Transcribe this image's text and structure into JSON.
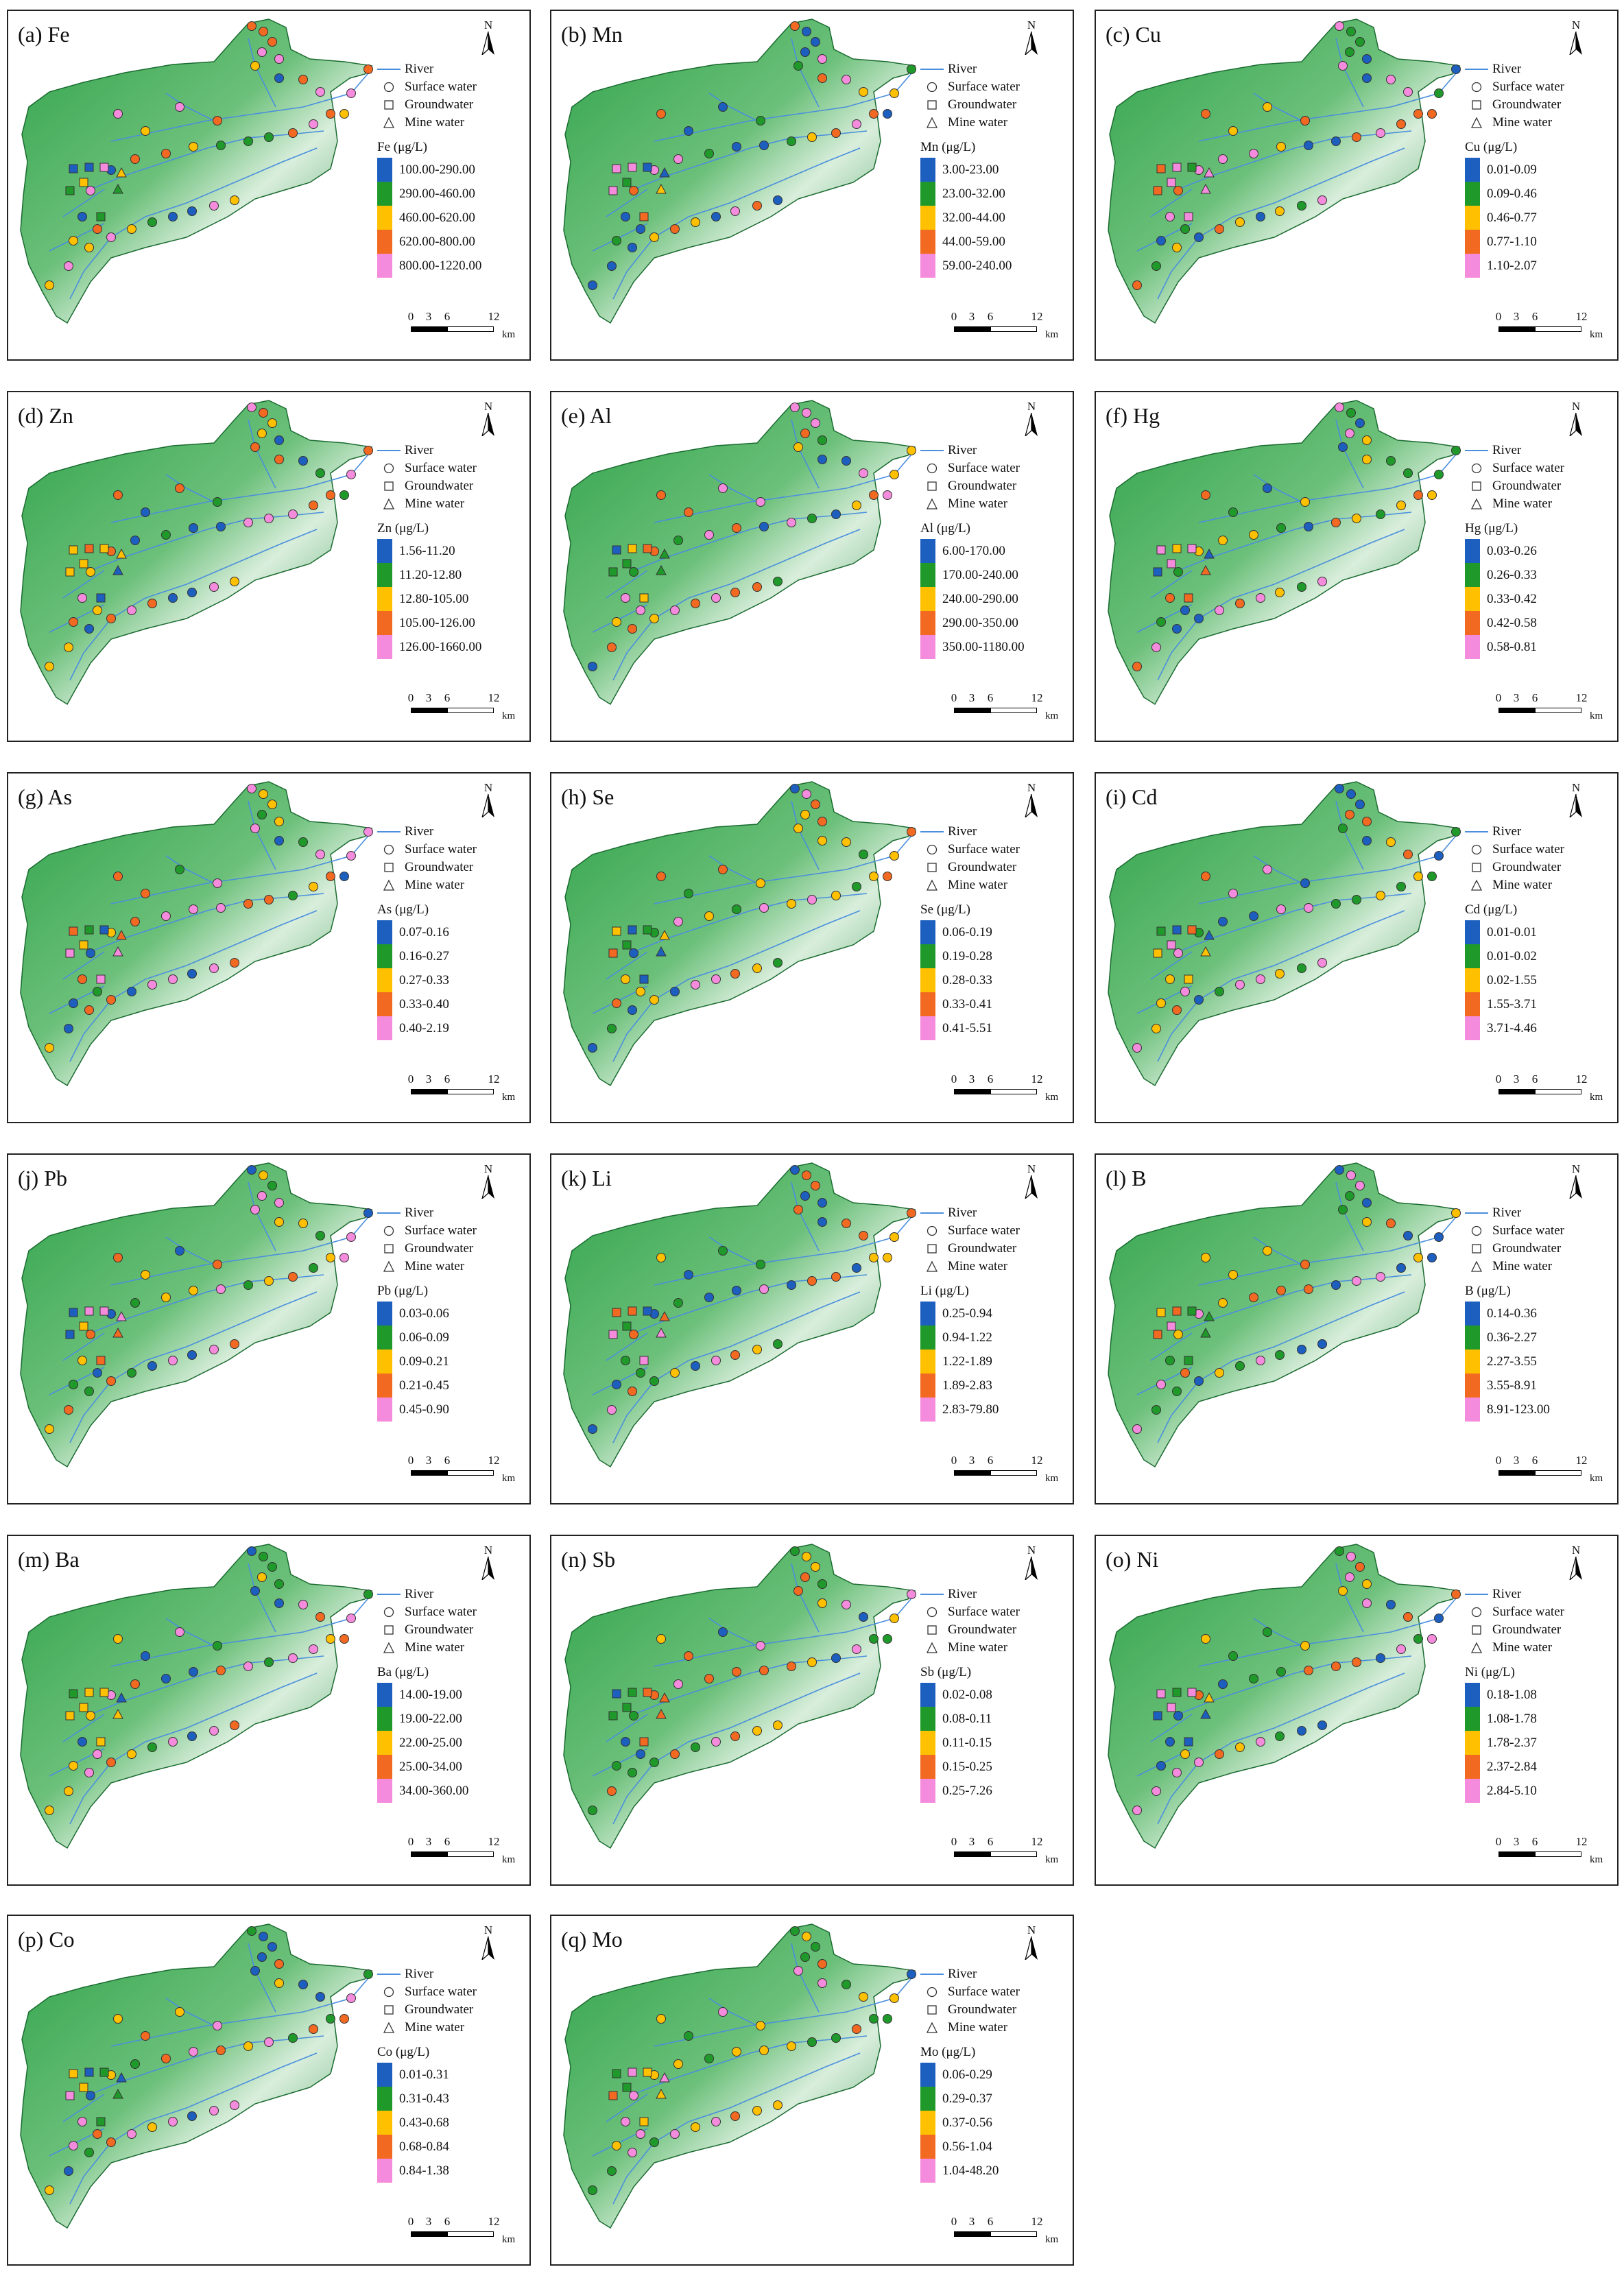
{
  "legend_items": {
    "river": "River",
    "surface": "Surface water",
    "ground": "Groundwater",
    "mine": "Mine water"
  },
  "scale": {
    "ticks": [
      "0",
      "3",
      "6",
      "12"
    ],
    "unit": "km"
  },
  "class_colors": [
    "#1d5fbf",
    "#1f9a2a",
    "#ffc000",
    "#f26a21",
    "#f58bdc"
  ],
  "colors": {
    "river": "#4a8fdd",
    "map_green": "#2e9e48",
    "map_light": "#dff0e3"
  },
  "icons": {
    "north_arrow": "north-arrow-icon"
  },
  "panels": [
    {
      "title": "(a) Fe",
      "unit_label": "Fe (μg/L)",
      "classes": [
        "100.00-290.00",
        "290.00-460.00",
        "460.00-620.00",
        "620.00-800.00",
        "800.00-1220.00"
      ]
    },
    {
      "title": "(b) Mn",
      "unit_label": "Mn (μg/L)",
      "classes": [
        "3.00-23.00",
        "23.00-32.00",
        "32.00-44.00",
        "44.00-59.00",
        "59.00-240.00"
      ]
    },
    {
      "title": "(c) Cu",
      "unit_label": "Cu (μg/L)",
      "classes": [
        "0.01-0.09",
        "0.09-0.46",
        "0.46-0.77",
        "0.77-1.10",
        "1.10-2.07"
      ]
    },
    {
      "title": "(d) Zn",
      "unit_label": "Zn (μg/L)",
      "classes": [
        "1.56-11.20",
        "11.20-12.80",
        "12.80-105.00",
        "105.00-126.00",
        "126.00-1660.00"
      ]
    },
    {
      "title": "(e) Al",
      "unit_label": "Al (μg/L)",
      "classes": [
        "6.00-170.00",
        "170.00-240.00",
        "240.00-290.00",
        "290.00-350.00",
        "350.00-1180.00"
      ]
    },
    {
      "title": "(f) Hg",
      "unit_label": "Hg (μg/L)",
      "classes": [
        "0.03-0.26",
        "0.26-0.33",
        "0.33-0.42",
        "0.42-0.58",
        "0.58-0.81"
      ]
    },
    {
      "title": "(g) As",
      "unit_label": "As (μg/L)",
      "classes": [
        "0.07-0.16",
        "0.16-0.27",
        "0.27-0.33",
        "0.33-0.40",
        "0.40-2.19"
      ]
    },
    {
      "title": "(h) Se",
      "unit_label": "Se (μg/L)",
      "classes": [
        "0.06-0.19",
        "0.19-0.28",
        "0.28-0.33",
        "0.33-0.41",
        "0.41-5.51"
      ]
    },
    {
      "title": "(i) Cd",
      "unit_label": "Cd (μg/L)",
      "classes": [
        "0.01-0.01",
        "0.01-0.02",
        "0.02-1.55",
        "1.55-3.71",
        "3.71-4.46"
      ]
    },
    {
      "title": "(j) Pb",
      "unit_label": "Pb (μg/L)",
      "classes": [
        "0.03-0.06",
        "0.06-0.09",
        "0.09-0.21",
        "0.21-0.45",
        "0.45-0.90"
      ]
    },
    {
      "title": "(k) Li",
      "unit_label": "Li (μg/L)",
      "classes": [
        "0.25-0.94",
        "0.94-1.22",
        "1.22-1.89",
        "1.89-2.83",
        "2.83-79.80"
      ]
    },
    {
      "title": "(l) B",
      "unit_label": "B (μg/L)",
      "classes": [
        "0.14-0.36",
        "0.36-2.27",
        "2.27-3.55",
        "3.55-8.91",
        "8.91-123.00"
      ]
    },
    {
      "title": "(m) Ba",
      "unit_label": "Ba (μg/L)",
      "classes": [
        "14.00-19.00",
        "19.00-22.00",
        "22.00-25.00",
        "25.00-34.00",
        "34.00-360.00"
      ]
    },
    {
      "title": "(n) Sb",
      "unit_label": "Sb (μg/L)",
      "classes": [
        "0.02-0.08",
        "0.08-0.11",
        "0.11-0.15",
        "0.15-0.25",
        "0.25-7.26"
      ]
    },
    {
      "title": "(o) Ni",
      "unit_label": "Ni (μg/L)",
      "classes": [
        "0.18-1.08",
        "1.08-1.78",
        "1.78-2.37",
        "2.37-2.84",
        "2.84-5.10"
      ]
    },
    {
      "title": "(p) Co",
      "unit_label": "Co (μg/L)",
      "classes": [
        "0.01-0.31",
        "0.31-0.43",
        "0.43-0.68",
        "0.68-0.84",
        "0.84-1.38"
      ]
    },
    {
      "title": "(q) Mo",
      "unit_label": "Mo (μg/L)",
      "classes": [
        "0.06-0.29",
        "0.29-0.37",
        "0.37-0.56",
        "0.56-1.04",
        "1.04-48.20"
      ]
    }
  ]
}
